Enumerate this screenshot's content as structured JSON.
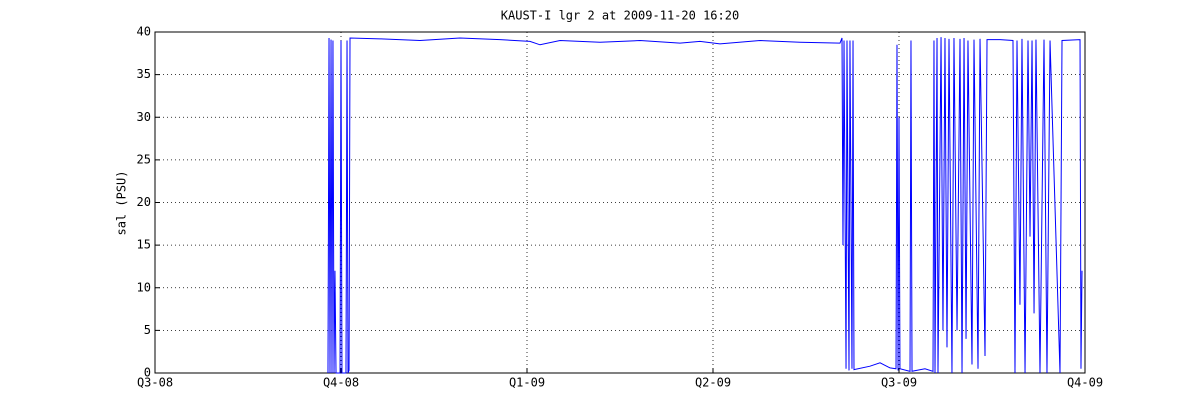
{
  "chart_data": {
    "type": "line",
    "title": "KAUST-I lgr 2 at 2009-11-20 16:20",
    "y_label": "sal (PSU)",
    "xlim": [
      2008.5,
      2009.75
    ],
    "xticks": [
      {
        "value": 2008.5,
        "label": "Q3-08"
      },
      {
        "value": 2008.75,
        "label": "Q4-08"
      },
      {
        "value": 2009.0,
        "label": "Q1-09"
      },
      {
        "value": 2009.25,
        "label": "Q2-09"
      },
      {
        "value": 2009.5,
        "label": "Q3-09"
      },
      {
        "value": 2009.75,
        "label": "Q4-09"
      }
    ],
    "ylim": [
      0,
      40
    ],
    "yticks": [
      0,
      5,
      10,
      15,
      20,
      25,
      30,
      35,
      40
    ],
    "grid": true,
    "x": [
      2008.7325,
      2008.7339,
      2008.7352,
      2008.7366,
      2008.7379,
      2008.7392,
      2008.7406,
      2008.7419,
      2008.7433,
      2008.7487,
      2008.75,
      2008.7513,
      2008.7567,
      2008.7581,
      2008.7594,
      2008.7608,
      2008.7621,
      2008.8024,
      2008.8562,
      2008.9099,
      2008.9637,
      2009.004,
      2009.0175,
      2009.0444,
      2009.0981,
      2009.1519,
      2009.2056,
      2009.2325,
      2009.2594,
      2009.3132,
      2009.3669,
      2009.4207,
      2009.4234,
      2009.4247,
      2009.4261,
      2009.4288,
      2009.4301,
      2009.4328,
      2009.4341,
      2009.4368,
      2009.4382,
      2009.4395,
      2009.461,
      2009.4745,
      2009.4879,
      2009.496,
      2009.4973,
      2009.4987,
      2009.5,
      2009.5013,
      2009.5148,
      2009.5161,
      2009.5175,
      2009.5349,
      2009.5457,
      2009.547,
      2009.5484,
      2009.5511,
      2009.5524,
      2009.5565,
      2009.5591,
      2009.5618,
      2009.5645,
      2009.5672,
      2009.5712,
      2009.5739,
      2009.578,
      2009.582,
      2009.5847,
      2009.5874,
      2009.5901,
      2009.5927,
      2009.5981,
      2009.6008,
      2009.6062,
      2009.6089,
      2009.6156,
      2009.6183,
      2009.6358,
      2009.6532,
      2009.6559,
      2009.6586,
      2009.6626,
      2009.6653,
      2009.6694,
      2009.6734,
      2009.6761,
      2009.6788,
      2009.6815,
      2009.6841,
      2009.6895,
      2009.6949,
      2009.6989,
      2009.703,
      2009.7164,
      2009.7191,
      2009.7433,
      2009.7446,
      2009.746
    ],
    "series": [
      {
        "color": "#0000ff",
        "values": [
          0,
          39.3,
          0,
          39.1,
          0,
          39,
          0,
          12,
          0,
          0,
          39,
          0,
          0,
          39,
          0,
          0.3,
          39.3,
          39.2,
          39.0,
          39.3,
          39.1,
          38.9,
          38.5,
          39.0,
          38.8,
          39.0,
          38.7,
          38.9,
          38.6,
          39.0,
          38.8,
          38.7,
          39.3,
          15,
          39,
          0.5,
          39,
          0.3,
          39,
          0.5,
          39,
          0.4,
          0.8,
          1.2,
          0.6,
          0.5,
          38.5,
          0.3,
          30,
          0.5,
          0.2,
          39,
          0.2,
          0.5,
          0.2,
          39,
          0,
          39.3,
          0,
          39.4,
          5,
          39.3,
          3,
          39.2,
          0,
          39.3,
          5,
          39.2,
          0,
          39.3,
          4,
          39,
          1,
          39.1,
          0.5,
          39.2,
          2,
          39.1,
          39.1,
          39.0,
          0,
          39,
          8,
          39.2,
          0,
          39,
          16,
          39,
          7,
          39.1,
          0,
          39.1,
          0,
          39,
          0,
          39,
          39.1,
          0.5,
          12
        ]
      }
    ]
  }
}
